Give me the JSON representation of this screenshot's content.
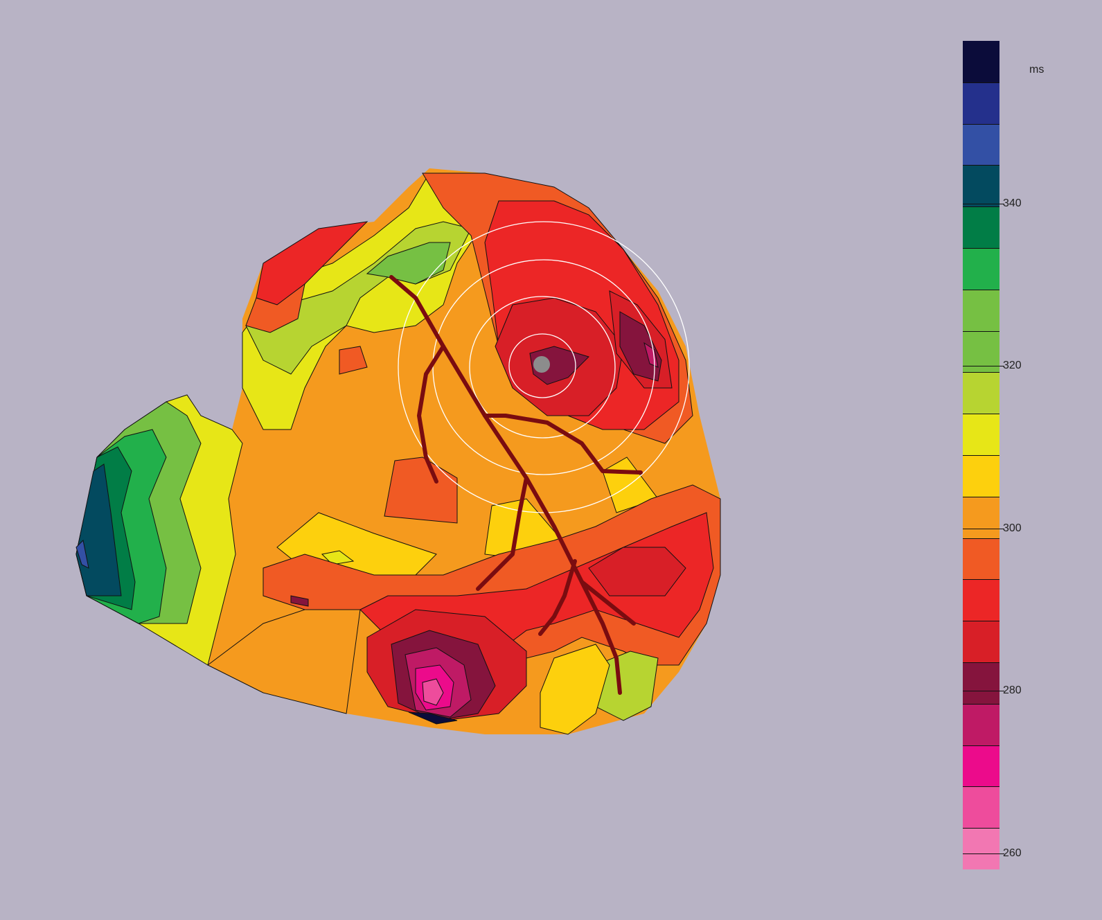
{
  "colorbar": {
    "unit": "ms",
    "tick_labels": [
      "340",
      "320",
      "300",
      "280",
      "260"
    ],
    "tick_values": [
      340,
      320,
      300,
      280,
      260
    ],
    "value_max": 360,
    "value_min": 258,
    "colors": [
      "#0b0c3a",
      "#24308c",
      "#3350a5",
      "#034a5f",
      "#017d46",
      "#22b04b",
      "#76c043",
      "#76c043",
      "#b7d431",
      "#e7e617",
      "#fdd00d",
      "#f59a1e",
      "#f05a24",
      "#ec2626",
      "#d81f27",
      "#85143d",
      "#bf1a65",
      "#ec0b8b",
      "#ee4c9c",
      "#f277b2"
    ]
  },
  "map": {
    "colors": {
      "navy": "#0b0c3a",
      "blue": "#3350a5",
      "teal": "#034a5f",
      "green": "#017d46",
      "lime": "#76c043",
      "yellow_green": "#b7d431",
      "yellow": "#e7e617",
      "gold": "#fdd00d",
      "orange": "#f59a1e",
      "red_orange": "#f05a24",
      "red": "#ec2626",
      "deep_red": "#d81f27",
      "maroon": "#85143d",
      "magenta": "#bf1a65",
      "pink": "#ec0b8b",
      "light_pink": "#ee4c9c",
      "vessel": "#7a0c10",
      "marker": "#8c8c8c"
    }
  }
}
